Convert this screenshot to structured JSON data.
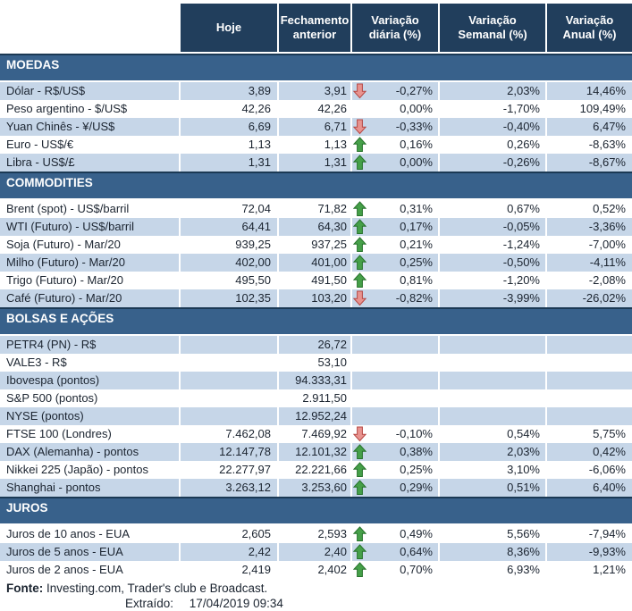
{
  "header": {
    "columns": [
      "Hoje",
      "Fechamento anterior",
      "Variação diária (%)",
      "Variação Semanal (%)",
      "Variação Anual (%)"
    ]
  },
  "sections": [
    {
      "title": "MOEDAS",
      "rows": [
        {
          "label": "Dólar - R$/US$",
          "hoje": "3,89",
          "fechamento": "3,91",
          "arrow": "down",
          "var_diaria": "-0,27%",
          "var_semanal": "2,03%",
          "var_anual": "14,46%"
        },
        {
          "label": "Peso argentino - $/US$",
          "hoje": "42,26",
          "fechamento": "42,26",
          "arrow": "",
          "var_diaria": "0,00%",
          "var_semanal": "-1,70%",
          "var_anual": "109,49%"
        },
        {
          "label": "Yuan Chinês - ¥/US$",
          "hoje": "6,69",
          "fechamento": "6,71",
          "arrow": "down",
          "var_diaria": "-0,33%",
          "var_semanal": "-0,40%",
          "var_anual": "6,47%"
        },
        {
          "label": "Euro - US$/€",
          "hoje": "1,13",
          "fechamento": "1,13",
          "arrow": "up",
          "var_diaria": "0,16%",
          "var_semanal": "0,26%",
          "var_anual": "-8,63%"
        },
        {
          "label": "Libra - US$/£",
          "hoje": "1,31",
          "fechamento": "1,31",
          "arrow": "up",
          "var_diaria": "0,00%",
          "var_semanal": "-0,26%",
          "var_anual": "-8,67%"
        }
      ]
    },
    {
      "title": "COMMODITIES",
      "rows": [
        {
          "label": "Brent (spot) - US$/barril",
          "hoje": "72,04",
          "fechamento": "71,82",
          "arrow": "up",
          "var_diaria": "0,31%",
          "var_semanal": "0,67%",
          "var_anual": "0,52%"
        },
        {
          "label": "WTI (Futuro) - US$/barril",
          "hoje": "64,41",
          "fechamento": "64,30",
          "arrow": "up",
          "var_diaria": "0,17%",
          "var_semanal": "-0,05%",
          "var_anual": "-3,36%"
        },
        {
          "label": "Soja (Futuro) - Mar/20",
          "hoje": "939,25",
          "fechamento": "937,25",
          "arrow": "up",
          "var_diaria": "0,21%",
          "var_semanal": "-1,24%",
          "var_anual": "-7,00%"
        },
        {
          "label": "Milho (Futuro) - Mar/20",
          "hoje": "402,00",
          "fechamento": "401,00",
          "arrow": "up",
          "var_diaria": "0,25%",
          "var_semanal": "-0,50%",
          "var_anual": "-4,11%"
        },
        {
          "label": "Trigo (Futuro) - Mar/20",
          "hoje": "495,50",
          "fechamento": "491,50",
          "arrow": "up",
          "var_diaria": "0,81%",
          "var_semanal": "-1,20%",
          "var_anual": "-2,08%"
        },
        {
          "label": "Café (Futuro) - Mar/20",
          "hoje": "102,35",
          "fechamento": "103,20",
          "arrow": "down",
          "var_diaria": "-0,82%",
          "var_semanal": "-3,99%",
          "var_anual": "-26,02%"
        }
      ]
    },
    {
      "title": "BOLSAS E AÇÕES",
      "rows": [
        {
          "label": "PETR4 (PN) - R$",
          "hoje": "",
          "fechamento": "26,72",
          "arrow": "",
          "var_diaria": "",
          "var_semanal": "",
          "var_anual": ""
        },
        {
          "label": "VALE3 - R$",
          "hoje": "",
          "fechamento": "53,10",
          "arrow": "",
          "var_diaria": "",
          "var_semanal": "",
          "var_anual": ""
        },
        {
          "label": "Ibovespa (pontos)",
          "hoje": "",
          "fechamento": "94.333,31",
          "arrow": "",
          "var_diaria": "",
          "var_semanal": "",
          "var_anual": ""
        },
        {
          "label": "S&P 500 (pontos)",
          "hoje": "",
          "fechamento": "2.911,50",
          "arrow": "",
          "var_diaria": "",
          "var_semanal": "",
          "var_anual": ""
        },
        {
          "label": "NYSE (pontos)",
          "hoje": "",
          "fechamento": "12.952,24",
          "arrow": "",
          "var_diaria": "",
          "var_semanal": "",
          "var_anual": ""
        },
        {
          "label": "FTSE 100 (Londres)",
          "hoje": "7.462,08",
          "fechamento": "7.469,92",
          "arrow": "down",
          "var_diaria": "-0,10%",
          "var_semanal": "0,54%",
          "var_anual": "5,75%"
        },
        {
          "label": "DAX (Alemanha) - pontos",
          "hoje": "12.147,78",
          "fechamento": "12.101,32",
          "arrow": "up",
          "var_diaria": "0,38%",
          "var_semanal": "2,03%",
          "var_anual": "0,42%"
        },
        {
          "label": "Nikkei 225 (Japão) - pontos",
          "hoje": "22.277,97",
          "fechamento": "22.221,66",
          "arrow": "up",
          "var_diaria": "0,25%",
          "var_semanal": "3,10%",
          "var_anual": "-6,06%"
        },
        {
          "label": "Shanghai - pontos",
          "hoje": "3.263,12",
          "fechamento": "3.253,60",
          "arrow": "up",
          "var_diaria": "0,29%",
          "var_semanal": "0,51%",
          "var_anual": "6,40%"
        }
      ]
    },
    {
      "title": "JUROS",
      "rows": [
        {
          "label": "Juros de 10 anos - EUA",
          "hoje": "2,605",
          "fechamento": "2,593",
          "arrow": "up",
          "var_diaria": "0,49%",
          "var_semanal": "5,56%",
          "var_anual": "-7,94%"
        },
        {
          "label": "Juros de 5 anos - EUA",
          "hoje": "2,42",
          "fechamento": "2,40",
          "arrow": "up",
          "var_diaria": "0,64%",
          "var_semanal": "8,36%",
          "var_anual": "-9,93%"
        },
        {
          "label": "Juros de 2 anos - EUA",
          "hoje": "2,419",
          "fechamento": "2,402",
          "arrow": "up",
          "var_diaria": "0,70%",
          "var_semanal": "6,93%",
          "var_anual": "1,21%"
        }
      ]
    }
  ],
  "footer": {
    "fonte_label": "Fonte:",
    "fonte_text": "Investing.com, Trader's club e Broadcast.",
    "extraido_label": "Extraído:",
    "extraido_value": "17/04/2019 09:34"
  },
  "icons": {
    "up": "up-arrow-icon",
    "down": "down-arrow-icon"
  },
  "colors": {
    "header_bg": "#213E5C",
    "section_bar_bg": "#38618B",
    "section_bar_border": "#1B3954",
    "row_alt_bg": "#C6D6E8",
    "up_arrow_fill": "#46A049",
    "up_arrow_border": "#27722C",
    "down_arrow_fill": "#E8938F",
    "down_arrow_border": "#B64743"
  }
}
